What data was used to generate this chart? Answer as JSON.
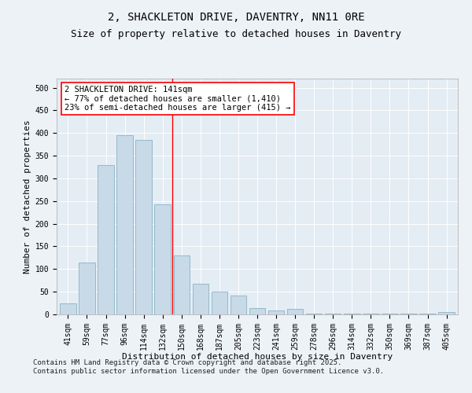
{
  "title": "2, SHACKLETON DRIVE, DAVENTRY, NN11 0RE",
  "subtitle": "Size of property relative to detached houses in Daventry",
  "xlabel": "Distribution of detached houses by size in Daventry",
  "ylabel": "Number of detached properties",
  "categories": [
    "41sqm",
    "59sqm",
    "77sqm",
    "96sqm",
    "114sqm",
    "132sqm",
    "150sqm",
    "168sqm",
    "187sqm",
    "205sqm",
    "223sqm",
    "241sqm",
    "259sqm",
    "278sqm",
    "296sqm",
    "314sqm",
    "332sqm",
    "350sqm",
    "369sqm",
    "387sqm",
    "405sqm"
  ],
  "values": [
    25,
    115,
    330,
    395,
    385,
    242,
    130,
    68,
    50,
    42,
    14,
    9,
    12,
    2,
    2,
    1,
    1,
    1,
    1,
    1,
    5
  ],
  "bar_color": "#c8d9e8",
  "bar_edge_color": "#7aaabb",
  "vline_x_index": 5,
  "vline_color": "red",
  "annotation_text": "2 SHACKLETON DRIVE: 141sqm\n← 77% of detached houses are smaller (1,410)\n23% of semi-detached houses are larger (415) →",
  "annotation_box_color": "white",
  "annotation_box_edge": "red",
  "ylim": [
    0,
    520
  ],
  "yticks": [
    0,
    50,
    100,
    150,
    200,
    250,
    300,
    350,
    400,
    450,
    500
  ],
  "footer": "Contains HM Land Registry data © Crown copyright and database right 2025.\nContains public sector information licensed under the Open Government Licence v3.0.",
  "bg_color": "#edf2f7",
  "plot_bg_color": "#e4ecf4",
  "grid_color": "#ffffff",
  "title_fontsize": 10,
  "subtitle_fontsize": 9,
  "axis_label_fontsize": 8,
  "tick_fontsize": 7,
  "annotation_fontsize": 7.5,
  "footer_fontsize": 6.5
}
